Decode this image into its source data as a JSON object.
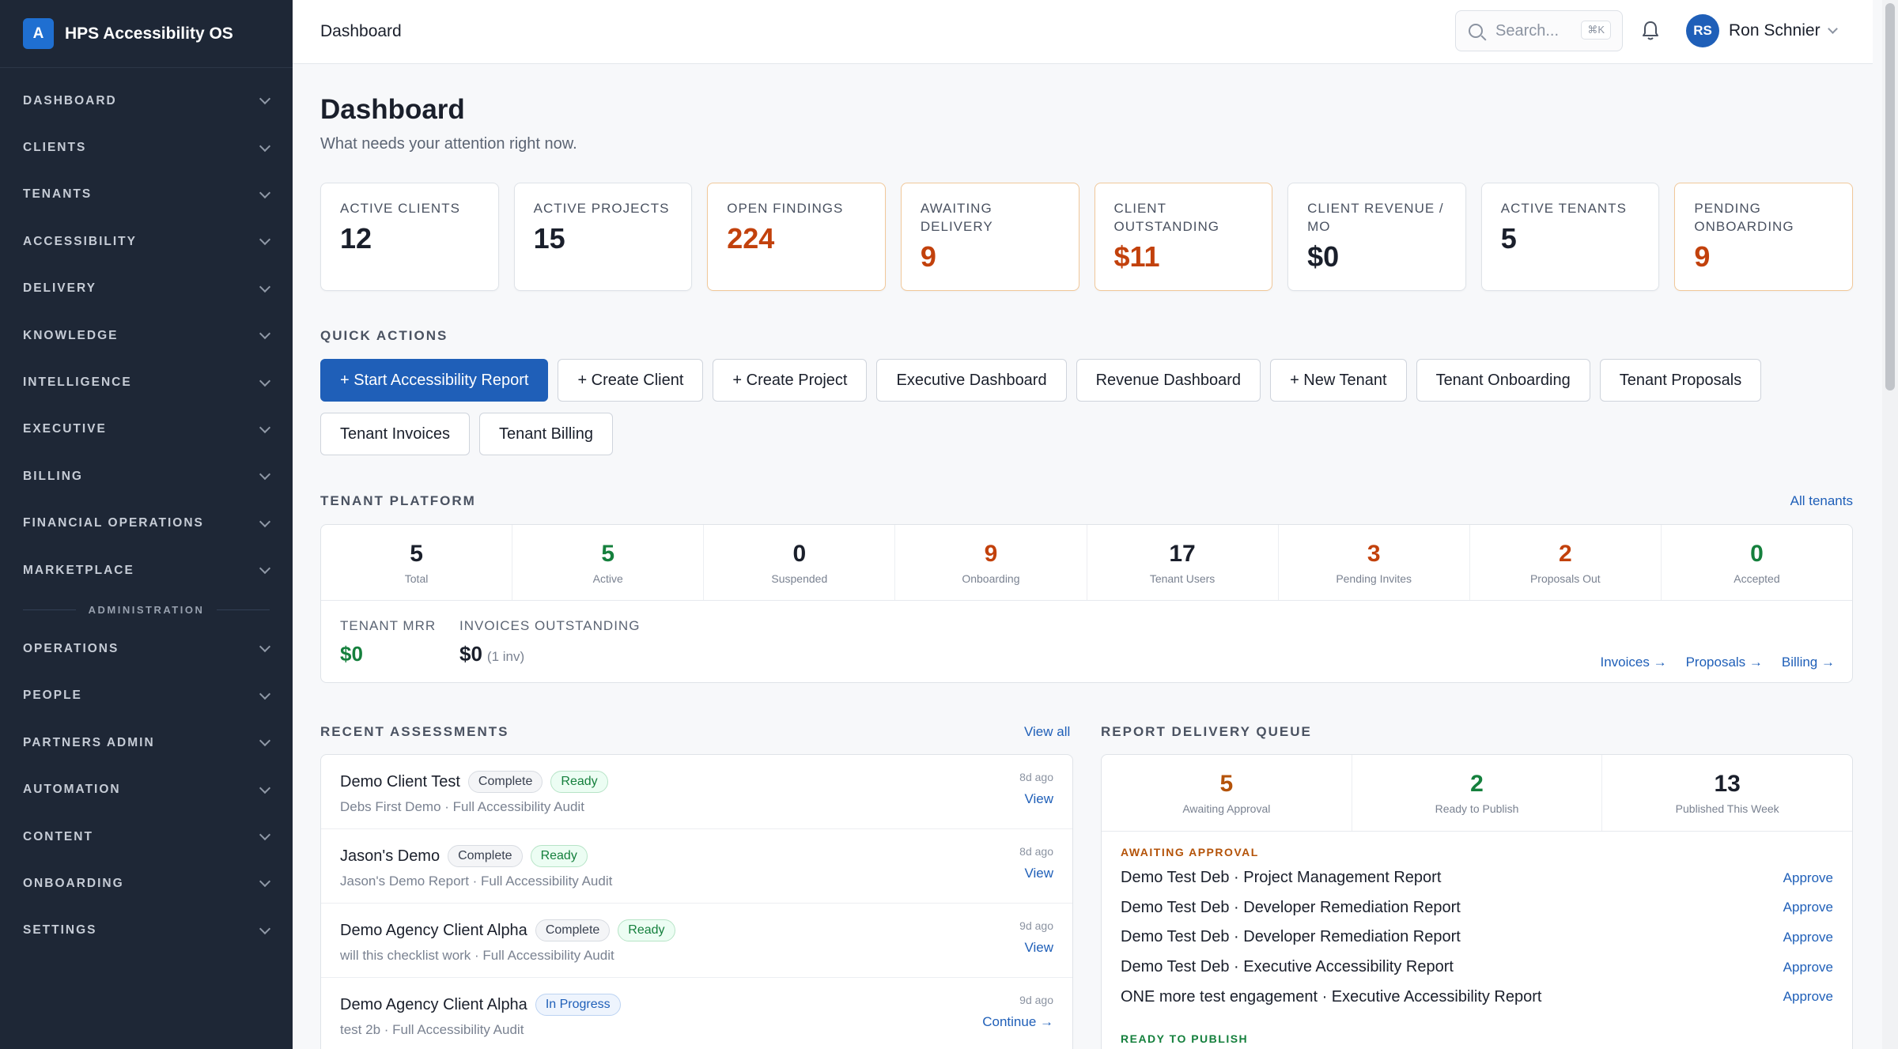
{
  "brand": {
    "logo_letter": "A",
    "name": "HPS Accessibility OS"
  },
  "sidebar": {
    "items": [
      {
        "label": "DASHBOARD"
      },
      {
        "label": "CLIENTS"
      },
      {
        "label": "TENANTS"
      },
      {
        "label": "ACCESSIBILITY"
      },
      {
        "label": "DELIVERY"
      },
      {
        "label": "KNOWLEDGE"
      },
      {
        "label": "INTELLIGENCE"
      },
      {
        "label": "EXECUTIVE"
      },
      {
        "label": "BILLING"
      },
      {
        "label": "FINANCIAL OPERATIONS"
      },
      {
        "label": "MARKETPLACE"
      }
    ],
    "admin_label": "ADMINISTRATION",
    "admin_items": [
      {
        "label": "OPERATIONS"
      },
      {
        "label": "PEOPLE"
      },
      {
        "label": "PARTNERS ADMIN"
      },
      {
        "label": "AUTOMATION"
      },
      {
        "label": "CONTENT"
      },
      {
        "label": "ONBOARDING"
      },
      {
        "label": "SETTINGS"
      }
    ]
  },
  "header": {
    "breadcrumb": "Dashboard",
    "search_placeholder": "Search...",
    "search_shortcut": "⌘K",
    "user_initials": "RS",
    "user_name": "Ron Schnier"
  },
  "page": {
    "title": "Dashboard",
    "subtitle": "What needs your attention right now."
  },
  "stats": [
    {
      "label": "ACTIVE CLIENTS",
      "value": "12"
    },
    {
      "label": "ACTIVE PROJECTS",
      "value": "15"
    },
    {
      "label": "OPEN FINDINGS",
      "value": "224"
    },
    {
      "label": "AWAITING DELIVERY",
      "value": "9"
    },
    {
      "label": "CLIENT OUTSTANDING",
      "value": "$11"
    },
    {
      "label": "CLIENT REVENUE / MO",
      "value": "$0"
    },
    {
      "label": "ACTIVE TENANTS",
      "value": "5"
    },
    {
      "label": "PENDING ONBOARDING",
      "value": "9"
    }
  ],
  "quick_actions": {
    "label": "QUICK ACTIONS",
    "buttons": [
      "+ Start Accessibility Report",
      "+ Create Client",
      "+ Create Project",
      "Executive Dashboard",
      "Revenue Dashboard",
      "+ New Tenant",
      "Tenant Onboarding",
      "Tenant Proposals",
      "Tenant Invoices",
      "Tenant Billing"
    ]
  },
  "tenant_platform": {
    "label": "TENANT PLATFORM",
    "all_link": "All tenants",
    "stats": [
      {
        "value": "5",
        "label": "Total"
      },
      {
        "value": "5",
        "label": "Active"
      },
      {
        "value": "0",
        "label": "Suspended"
      },
      {
        "value": "9",
        "label": "Onboarding"
      },
      {
        "value": "17",
        "label": "Tenant Users"
      },
      {
        "value": "3",
        "label": "Pending Invites"
      },
      {
        "value": "2",
        "label": "Proposals Out"
      },
      {
        "value": "0",
        "label": "Accepted"
      }
    ],
    "mrr_label": "TENANT MRR",
    "mrr_value": "$0",
    "invoices_label": "INVOICES OUTSTANDING",
    "invoices_value": "$0",
    "invoices_note": "(1 inv)",
    "links": [
      "Invoices →",
      "Proposals →",
      "Billing →"
    ]
  },
  "recent_assessments": {
    "label": "RECENT ASSESSMENTS",
    "view_all": "View all",
    "rows": [
      {
        "name": "Demo Client Test",
        "status": "Complete",
        "state": "Ready",
        "sub": "Debs First Demo · Full Accessibility Audit",
        "ago": "8d ago",
        "action": "View"
      },
      {
        "name": "Jason's Demo",
        "status": "Complete",
        "state": "Ready",
        "sub": "Jason's Demo Report · Full Accessibility Audit",
        "ago": "8d ago",
        "action": "View"
      },
      {
        "name": "Demo Agency Client Alpha",
        "status": "Complete",
        "state": "Ready",
        "sub": "will this checklist work · Full Accessibility Audit",
        "ago": "9d ago",
        "action": "View"
      },
      {
        "name": "Demo Agency Client Alpha",
        "status": "In Progress",
        "state": "",
        "sub": "test 2b · Full Accessibility Audit",
        "ago": "9d ago",
        "action": "Continue →"
      }
    ]
  },
  "delivery_queue": {
    "label": "REPORT DELIVERY QUEUE",
    "stats": [
      {
        "value": "5",
        "label": "Awaiting Approval"
      },
      {
        "value": "2",
        "label": "Ready to Publish"
      },
      {
        "value": "13",
        "label": "Published This Week"
      }
    ],
    "awaiting_head": "AWAITING APPROVAL",
    "awaiting": [
      {
        "text": "Demo Test Deb · Project Management Report",
        "action": "Approve"
      },
      {
        "text": "Demo Test Deb · Developer Remediation Report",
        "action": "Approve"
      },
      {
        "text": "Demo Test Deb · Developer Remediation Report",
        "action": "Approve"
      },
      {
        "text": "Demo Test Deb · Executive Accessibility Report",
        "action": "Approve"
      },
      {
        "text": "ONE more test engagement · Executive Accessibility Report",
        "action": "Approve"
      }
    ],
    "ready_head": "READY TO PUBLISH"
  }
}
